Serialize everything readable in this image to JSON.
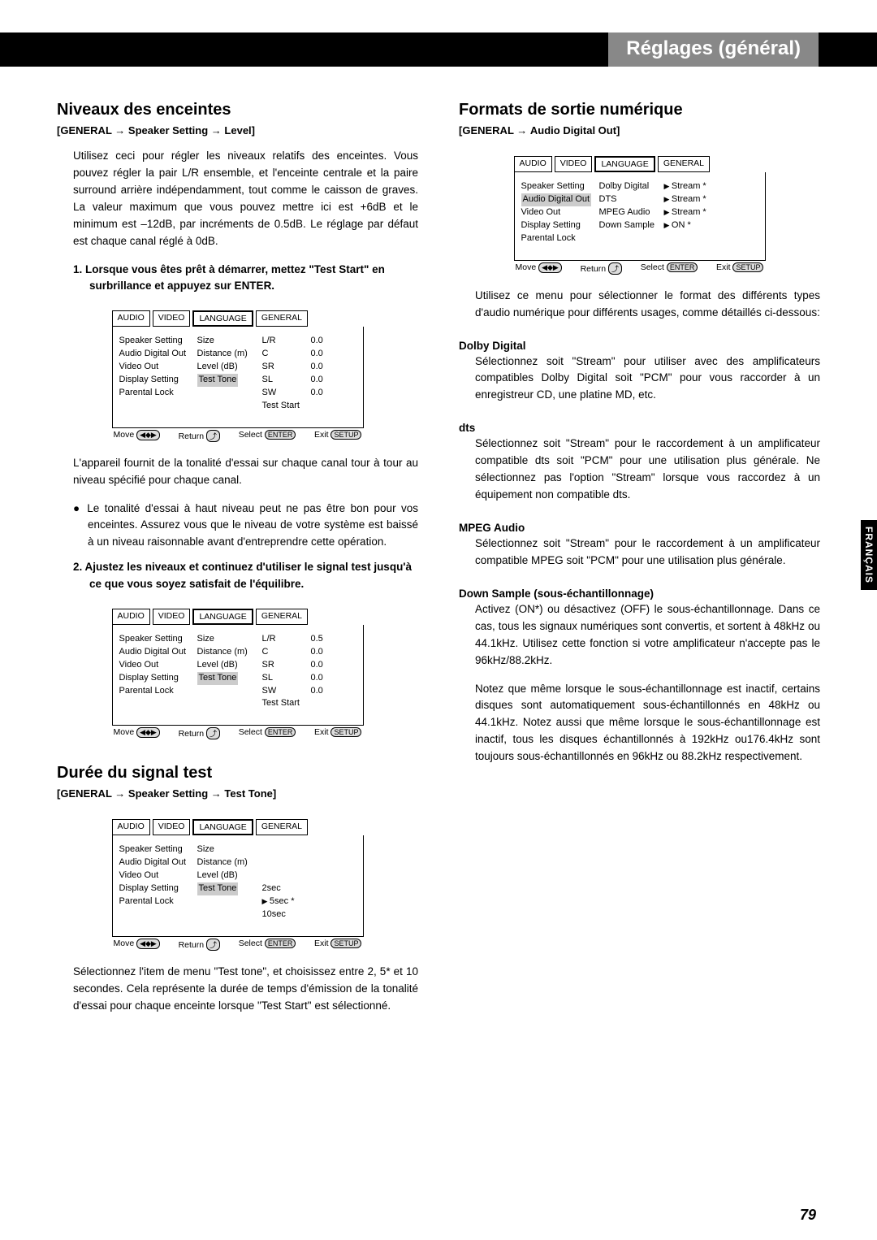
{
  "header_right": "Réglages (général)",
  "side_tab": "FRANÇAIS",
  "page_number": "79",
  "left": {
    "s1_title": "Niveaux des enceintes",
    "s1_breadcrumb_a": "[GENERAL",
    "s1_breadcrumb_b": "Speaker Setting",
    "s1_breadcrumb_c": "Level]",
    "s1_p1": "Utilisez ceci pour régler les niveaux relatifs des enceintes. Vous pouvez régler la pair L/R ensemble, et l'enceinte centrale et la paire surround arrière indépendamment, tout comme le caisson de graves. La valeur maximum que vous pouvez mettre ici est +6dB et le minimum est –12dB, par incréments de 0.5dB. Le réglage par défaut est chaque canal réglé à 0dB.",
    "s1_step1": "1. Lorsque vous êtes prêt à démarrer, mettez \"Test Start\" en surbrillance et appuyez sur ENTER.",
    "s1_p2": "L'appareil fournit de la tonalité d'essai sur chaque canal tour à tour au niveau spécifié pour chaque canal.",
    "s1_bullet": "● Le tonalité d'essai à haut niveau peut ne pas être bon pour vos enceintes. Assurez vous que le niveau de votre système est baissé à un niveau raisonnable avant d'entreprendre cette opération.",
    "s1_step2": "2. Ajustez les niveaux et continuez d'utiliser le signal test jusqu'à ce que vous soyez satisfait de l'équilibre.",
    "s2_title": "Durée du signal test",
    "s2_breadcrumb_a": "[GENERAL",
    "s2_breadcrumb_b": "Speaker Setting",
    "s2_breadcrumb_c": "Test Tone]",
    "s2_p1": "Sélectionnez l'item de menu \"Test tone\", et choisissez entre 2, 5* et 10 secondes. Cela représente la durée de temps d'émission de la tonalité d'essai pour chaque enceinte lorsque \"Test Start\" est sélectionné."
  },
  "right": {
    "s1_title": "Formats de sortie numérique",
    "s1_breadcrumb_a": "[GENERAL",
    "s1_breadcrumb_b": "Audio Digital Out]",
    "s1_p1": "Utilisez ce menu pour sélectionner le format des différents types d'audio numérique pour différents usages, comme détaillés ci-dessous:",
    "dd_h": "Dolby Digital",
    "dd_p": "Sélectionnez soit \"Stream\" pour utiliser avec des amplificateurs compatibles Dolby Digital soit \"PCM\" pour vous raccorder à un enregistreur CD, une platine MD, etc.",
    "dts_h": "dts",
    "dts_p": "Sélectionnez soit \"Stream\" pour le raccordement à un amplificateur compatible dts soit \"PCM\" pour une utilisation plus générale. Ne sélectionnez pas l'option \"Stream\" lorsque vous raccordez à un équipement non compatible dts.",
    "mpeg_h": "MPEG Audio",
    "mpeg_p": "Sélectionnez soit \"Stream\" pour le raccordement à un amplificateur compatible MPEG soit \"PCM\" pour une utilisation plus générale.",
    "ds_h": "Down Sample (sous-échantillonnage)",
    "ds_p1": "Activez (ON*) ou désactivez (OFF) le sous-échantillonnage. Dans ce cas, tous les signaux numériques sont convertis, et sortent à 48kHz ou 44.1kHz. Utilisez cette fonction si votre amplificateur n'accepte pas le 96kHz/88.2kHz.",
    "ds_p2": "Notez que même lorsque le sous-échantillonnage est inactif, certains disques sont automatiquement sous-échantillonnés en 48kHz ou 44.1kHz. Notez aussi que même lorsque le sous-échantillonnage est inactif, tous les disques échantillonnés à 192kHz ou176.4kHz sont toujours sous-échantillonnés en 96kHz ou 88.2kHz respectivement."
  },
  "osd_common": {
    "tabs": [
      "AUDIO",
      "VIDEO",
      "LANGUAGE",
      "GENERAL"
    ],
    "menu": [
      "Speaker Setting",
      "Audio Digital Out",
      "Video Out",
      "Display Setting",
      "Parental Lock"
    ],
    "footer_move": "Move",
    "footer_return": "Return",
    "footer_select": "Select",
    "footer_exit": "Exit",
    "key_enter": "ENTER",
    "key_setup": "SETUP"
  },
  "osd1": {
    "col2": [
      "Size",
      "Distance (m)",
      "Level (dB)",
      "Test Tone"
    ],
    "col3": [
      "L/R",
      "C",
      "SR",
      "SL",
      "SW",
      "Test Start"
    ],
    "col4": [
      "0.0",
      "0.0",
      "0.0",
      "0.0",
      "0.0"
    ],
    "highlight_c2": 3
  },
  "osd2": {
    "col2": [
      "Size",
      "Distance (m)",
      "Level (dB)",
      "Test Tone"
    ],
    "col3": [
      "L/R",
      "C",
      "SR",
      "SL",
      "SW",
      "Test Start"
    ],
    "col4": [
      "0.5",
      "0.0",
      "0.0",
      "0.0",
      "0.0"
    ],
    "highlight_c2": 3
  },
  "osd3": {
    "col2": [
      "Size",
      "Distance (m)",
      "Level (dB)",
      "Test Tone"
    ],
    "col3": [
      "2sec",
      "5sec *",
      "10sec"
    ],
    "highlight_c2": 3,
    "sel_c3": 1
  },
  "osd4": {
    "col2": [
      "Dolby Digital",
      "DTS",
      "MPEG Audio",
      "Down Sample"
    ],
    "col3": [
      "Stream *",
      "Stream *",
      "Stream *",
      "ON *"
    ],
    "highlight_c1": 1
  }
}
